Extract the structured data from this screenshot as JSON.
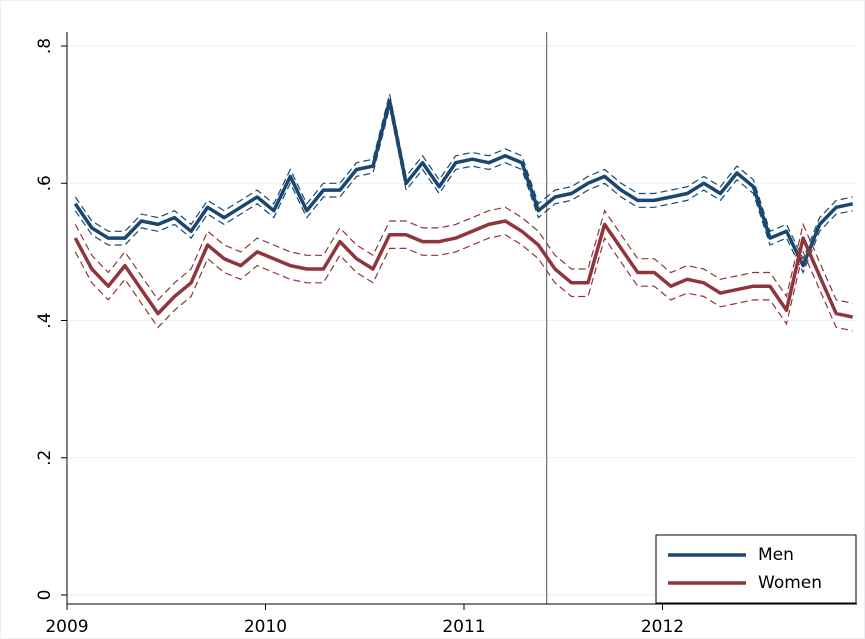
{
  "chart_data": {
    "type": "line",
    "x": [
      2009.0417,
      2009.125,
      2009.2083,
      2009.2917,
      2009.375,
      2009.4583,
      2009.5417,
      2009.625,
      2009.7083,
      2009.7917,
      2009.875,
      2009.9583,
      2010.0417,
      2010.125,
      2010.2083,
      2010.2917,
      2010.375,
      2010.4583,
      2010.5417,
      2010.625,
      2010.7083,
      2010.7917,
      2010.875,
      2010.9583,
      2011.0417,
      2011.125,
      2011.2083,
      2011.2917,
      2011.375,
      2011.4583,
      2011.5417,
      2011.625,
      2011.7083,
      2011.7917,
      2011.875,
      2011.9583,
      2012.0417,
      2012.125,
      2012.2083,
      2012.2917,
      2012.375,
      2012.4583,
      2012.5417,
      2012.625,
      2012.7083,
      2012.7917,
      2012.875,
      2012.9583
    ],
    "series": [
      {
        "name": "Men",
        "color": "#1a476f",
        "ci": 0.01,
        "values": [
          0.57,
          0.535,
          0.52,
          0.52,
          0.545,
          0.54,
          0.55,
          0.53,
          0.565,
          0.55,
          0.565,
          0.58,
          0.56,
          0.61,
          0.56,
          0.59,
          0.59,
          0.62,
          0.625,
          0.72,
          0.6,
          0.63,
          0.595,
          0.63,
          0.635,
          0.63,
          0.64,
          0.63,
          0.56,
          0.58,
          0.585,
          0.6,
          0.61,
          0.59,
          0.575,
          0.575,
          0.58,
          0.585,
          0.6,
          0.585,
          0.615,
          0.595,
          0.52,
          0.53,
          0.48,
          0.54,
          0.565,
          0.57
        ]
      },
      {
        "name": "Women",
        "color": "#90353b",
        "ci": 0.02,
        "values": [
          0.52,
          0.475,
          0.45,
          0.48,
          0.445,
          0.41,
          0.435,
          0.455,
          0.51,
          0.49,
          0.48,
          0.5,
          0.49,
          0.48,
          0.475,
          0.475,
          0.515,
          0.49,
          0.475,
          0.525,
          0.525,
          0.515,
          0.515,
          0.52,
          0.53,
          0.54,
          0.545,
          0.53,
          0.51,
          0.475,
          0.455,
          0.455,
          0.54,
          0.505,
          0.47,
          0.47,
          0.45,
          0.46,
          0.455,
          0.44,
          0.445,
          0.45,
          0.45,
          0.415,
          0.52,
          0.465,
          0.41,
          0.405
        ]
      }
    ],
    "vline": 2011.4167,
    "xlim": [
      2009,
      2012.98
    ],
    "xticks": [
      2009,
      2010,
      2011,
      2012
    ],
    "ylim": [
      0,
      0.8
    ],
    "yticks": [
      0,
      {
        "value": 0.2,
        "label": ".2"
      },
      {
        "value": 0.4,
        "label": ".4"
      },
      {
        "value": 0.6,
        "label": ".6"
      },
      {
        "value": 0.8,
        "label": ".8"
      }
    ],
    "grid": true,
    "legend": "lower right"
  }
}
